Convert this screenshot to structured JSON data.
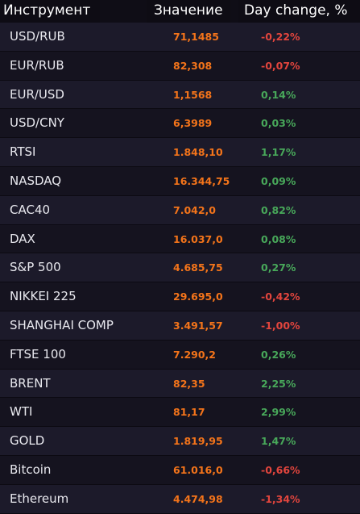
{
  "header": {
    "instrument": "Инструмент",
    "value": "Значение",
    "change": "Day change, %"
  },
  "colors": {
    "value": "#f4741a",
    "negative": "#e2453d",
    "positive": "#48a85a",
    "background": "#14121c"
  },
  "rows": [
    {
      "name": "USD/RUB",
      "value": "71,1485",
      "change": "-0,22%",
      "dir": "neg"
    },
    {
      "name": "EUR/RUB",
      "value": "82,308",
      "change": "-0,07%",
      "dir": "neg"
    },
    {
      "name": "EUR/USD",
      "value": "1,1568",
      "change": "0,14%",
      "dir": "pos"
    },
    {
      "name": "USD/CNY",
      "value": "6,3989",
      "change": "0,03%",
      "dir": "pos"
    },
    {
      "name": "RTSI",
      "value": "1.848,10",
      "change": "1,17%",
      "dir": "pos"
    },
    {
      "name": "NASDAQ",
      "value": "16.344,75",
      "change": "0,09%",
      "dir": "pos"
    },
    {
      "name": "CAC40",
      "value": "7.042,0",
      "change": "0,82%",
      "dir": "pos"
    },
    {
      "name": "DAX",
      "value": "16.037,0",
      "change": "0,08%",
      "dir": "pos"
    },
    {
      "name": "S&P 500",
      "value": "4.685,75",
      "change": "0,27%",
      "dir": "pos"
    },
    {
      "name": "NIKKEI 225",
      "value": "29.695,0",
      "change": "-0,42%",
      "dir": "neg"
    },
    {
      "name": "SHANGHAI COMP",
      "value": "3.491,57",
      "change": "-1,00%",
      "dir": "neg"
    },
    {
      "name": "FTSE 100",
      "value": "7.290,2",
      "change": "0,26%",
      "dir": "pos"
    },
    {
      "name": "BRENT",
      "value": "82,35",
      "change": "2,25%",
      "dir": "pos"
    },
    {
      "name": "WTI",
      "value": "81,17",
      "change": "2,99%",
      "dir": "pos"
    },
    {
      "name": "GOLD",
      "value": "1.819,95",
      "change": "1,47%",
      "dir": "pos"
    },
    {
      "name": "Bitcoin",
      "value": "61.016,0",
      "change": "-0,66%",
      "dir": "neg"
    },
    {
      "name": "Ethereum",
      "value": "4.474,98",
      "change": "-1,34%",
      "dir": "neg"
    }
  ]
}
